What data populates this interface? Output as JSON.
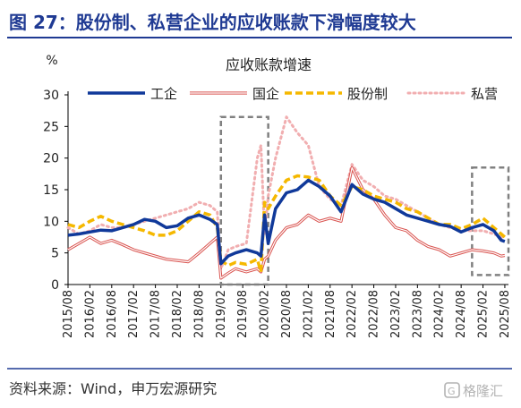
{
  "figure_title": "图 27：股份制、私营企业的应收账款下滑幅度较大",
  "source_text": "资料来源：Wind，申万宏源研究",
  "watermark_text": "格隆汇",
  "colors": {
    "title": "#1f3a93",
    "rule": "#1f3a93",
    "gongqi": "#10399a",
    "guoqi": "#d9534f",
    "gufenzhi": "#f5b800",
    "siying": "#f1aeb0",
    "highlight_box": "#808080"
  },
  "chart_data": {
    "type": "line",
    "title": "应收账款增速",
    "ylabel": "%",
    "xlabel": "",
    "ylim": [
      0,
      30
    ],
    "yticks": [
      0,
      5,
      10,
      15,
      20,
      25,
      30
    ],
    "xlim": [
      "2015-08",
      "2025-09"
    ],
    "xticks": [
      "2015/08",
      "2016/02",
      "2016/08",
      "2017/02",
      "2017/08",
      "2018/02",
      "2018/08",
      "2019/02",
      "2019/08",
      "2020/02",
      "2020/08",
      "2021/02",
      "2021/08",
      "2022/02",
      "2022/08",
      "2023/02",
      "2023/08",
      "2024/02",
      "2024/08",
      "2025/02",
      "2025/08"
    ],
    "legend_position": "top",
    "grid": false,
    "highlight_regions": [
      {
        "x_start": "2019-02",
        "x_end": "2020-03",
        "y_start": 0,
        "y_end": 26.5
      },
      {
        "x_start": "2024-11",
        "x_end": "2025-09",
        "y_start": 1.5,
        "y_end": 18.5
      }
    ],
    "series": [
      {
        "name": "工企",
        "style": "solid-thick",
        "points": [
          [
            "2015-08",
            7.8
          ],
          [
            "2015-11",
            8.0
          ],
          [
            "2016-02",
            8.3
          ],
          [
            "2016-05",
            8.6
          ],
          [
            "2016-08",
            8.5
          ],
          [
            "2016-11",
            9.0
          ],
          [
            "2017-02",
            9.5
          ],
          [
            "2017-05",
            10.3
          ],
          [
            "2017-08",
            10.0
          ],
          [
            "2017-11",
            9.0
          ],
          [
            "2018-02",
            9.3
          ],
          [
            "2018-05",
            10.5
          ],
          [
            "2018-08",
            11.0
          ],
          [
            "2018-11",
            10.3
          ],
          [
            "2019-01",
            9.5
          ],
          [
            "2019-02",
            3.3
          ],
          [
            "2019-04",
            4.5
          ],
          [
            "2019-06",
            5.0
          ],
          [
            "2019-09",
            5.5
          ],
          [
            "2019-12",
            5.0
          ],
          [
            "2020-01",
            4.5
          ],
          [
            "2020-02",
            11.0
          ],
          [
            "2020-03",
            6.5
          ],
          [
            "2020-05",
            12.0
          ],
          [
            "2020-08",
            14.5
          ],
          [
            "2020-11",
            15.0
          ],
          [
            "2021-02",
            16.5
          ],
          [
            "2021-05",
            15.5
          ],
          [
            "2021-08",
            14.0
          ],
          [
            "2021-11",
            11.5
          ],
          [
            "2022-02",
            15.8
          ],
          [
            "2022-05",
            14.3
          ],
          [
            "2022-08",
            13.5
          ],
          [
            "2022-11",
            13.0
          ],
          [
            "2023-02",
            12.0
          ],
          [
            "2023-05",
            11.0
          ],
          [
            "2023-08",
            10.5
          ],
          [
            "2023-11",
            10.0
          ],
          [
            "2024-02",
            9.5
          ],
          [
            "2024-05",
            9.2
          ],
          [
            "2024-08",
            8.3
          ],
          [
            "2024-11",
            9.0
          ],
          [
            "2025-02",
            9.5
          ],
          [
            "2025-05",
            8.5
          ],
          [
            "2025-07",
            7.0
          ],
          [
            "2025-08",
            6.8
          ]
        ]
      },
      {
        "name": "国企",
        "style": "double-line",
        "points": [
          [
            "2015-08",
            5.5
          ],
          [
            "2015-11",
            6.5
          ],
          [
            "2016-02",
            7.5
          ],
          [
            "2016-05",
            6.5
          ],
          [
            "2016-08",
            7.0
          ],
          [
            "2016-11",
            6.3
          ],
          [
            "2017-02",
            5.5
          ],
          [
            "2017-05",
            5.0
          ],
          [
            "2017-08",
            4.5
          ],
          [
            "2017-11",
            4.0
          ],
          [
            "2018-02",
            3.8
          ],
          [
            "2018-05",
            3.6
          ],
          [
            "2018-08",
            5.0
          ],
          [
            "2018-11",
            6.5
          ],
          [
            "2019-01",
            7.5
          ],
          [
            "2019-02",
            1.0
          ],
          [
            "2019-04",
            1.8
          ],
          [
            "2019-06",
            2.5
          ],
          [
            "2019-09",
            2.0
          ],
          [
            "2019-12",
            2.5
          ],
          [
            "2020-01",
            2.0
          ],
          [
            "2020-02",
            4.0
          ],
          [
            "2020-03",
            4.5
          ],
          [
            "2020-05",
            7.0
          ],
          [
            "2020-08",
            9.0
          ],
          [
            "2020-11",
            9.5
          ],
          [
            "2021-02",
            11.0
          ],
          [
            "2021-05",
            10.0
          ],
          [
            "2021-08",
            10.5
          ],
          [
            "2021-11",
            10.0
          ],
          [
            "2022-02",
            18.5
          ],
          [
            "2022-05",
            15.0
          ],
          [
            "2022-08",
            13.5
          ],
          [
            "2022-11",
            11.0
          ],
          [
            "2023-02",
            9.0
          ],
          [
            "2023-05",
            8.5
          ],
          [
            "2023-08",
            7.0
          ],
          [
            "2023-11",
            6.0
          ],
          [
            "2024-02",
            5.5
          ],
          [
            "2024-05",
            4.5
          ],
          [
            "2024-08",
            5.0
          ],
          [
            "2024-11",
            5.5
          ],
          [
            "2025-02",
            5.3
          ],
          [
            "2025-05",
            5.0
          ],
          [
            "2025-07",
            4.5
          ],
          [
            "2025-08",
            4.6
          ]
        ]
      },
      {
        "name": "股份制",
        "style": "dashed-thick",
        "points": [
          [
            "2015-08",
            9.5
          ],
          [
            "2015-11",
            9.0
          ],
          [
            "2016-02",
            10.0
          ],
          [
            "2016-05",
            10.8
          ],
          [
            "2016-08",
            10.0
          ],
          [
            "2016-11",
            9.5
          ],
          [
            "2017-02",
            9.0
          ],
          [
            "2017-05",
            8.5
          ],
          [
            "2017-08",
            7.8
          ],
          [
            "2017-11",
            7.8
          ],
          [
            "2018-02",
            8.5
          ],
          [
            "2018-05",
            10.0
          ],
          [
            "2018-08",
            11.5
          ],
          [
            "2018-11",
            11.0
          ],
          [
            "2019-01",
            9.0
          ],
          [
            "2019-02",
            3.8
          ],
          [
            "2019-04",
            3.0
          ],
          [
            "2019-06",
            3.5
          ],
          [
            "2019-09",
            3.2
          ],
          [
            "2019-12",
            4.0
          ],
          [
            "2020-01",
            2.0
          ],
          [
            "2020-02",
            13.0
          ],
          [
            "2020-03",
            12.0
          ],
          [
            "2020-05",
            14.0
          ],
          [
            "2020-08",
            16.5
          ],
          [
            "2020-11",
            17.2
          ],
          [
            "2021-02",
            17.0
          ],
          [
            "2021-05",
            16.5
          ],
          [
            "2021-08",
            14.0
          ],
          [
            "2021-11",
            12.5
          ],
          [
            "2022-02",
            15.5
          ],
          [
            "2022-05",
            15.0
          ],
          [
            "2022-08",
            14.0
          ],
          [
            "2022-11",
            13.5
          ],
          [
            "2023-02",
            13.0
          ],
          [
            "2023-05",
            12.0
          ],
          [
            "2023-08",
            11.5
          ],
          [
            "2023-11",
            10.5
          ],
          [
            "2024-02",
            9.5
          ],
          [
            "2024-05",
            9.5
          ],
          [
            "2024-08",
            8.8
          ],
          [
            "2024-11",
            9.5
          ],
          [
            "2025-02",
            10.5
          ],
          [
            "2025-05",
            9.0
          ],
          [
            "2025-07",
            8.0
          ],
          [
            "2025-08",
            7.5
          ]
        ]
      },
      {
        "name": "私营",
        "style": "dotted",
        "points": [
          [
            "2015-08",
            9.0
          ],
          [
            "2015-11",
            8.0
          ],
          [
            "2016-02",
            8.5
          ],
          [
            "2016-05",
            9.5
          ],
          [
            "2016-08",
            9.0
          ],
          [
            "2016-11",
            9.0
          ],
          [
            "2017-02",
            9.5
          ],
          [
            "2017-05",
            10.0
          ],
          [
            "2017-08",
            10.5
          ],
          [
            "2017-11",
            11.0
          ],
          [
            "2018-02",
            11.5
          ],
          [
            "2018-05",
            12.0
          ],
          [
            "2018-08",
            13.0
          ],
          [
            "2018-11",
            12.5
          ],
          [
            "2019-01",
            11.5
          ],
          [
            "2019-02",
            2.5
          ],
          [
            "2019-04",
            5.5
          ],
          [
            "2019-06",
            6.0
          ],
          [
            "2019-09",
            6.5
          ],
          [
            "2019-12",
            20.0
          ],
          [
            "2020-01",
            22.0
          ],
          [
            "2020-02",
            8.0
          ],
          [
            "2020-03",
            14.0
          ],
          [
            "2020-05",
            20.0
          ],
          [
            "2020-08",
            26.5
          ],
          [
            "2020-11",
            24.0
          ],
          [
            "2021-02",
            22.0
          ],
          [
            "2021-05",
            15.5
          ],
          [
            "2021-08",
            13.5
          ],
          [
            "2021-11",
            12.5
          ],
          [
            "2022-02",
            19.0
          ],
          [
            "2022-05",
            16.5
          ],
          [
            "2022-08",
            15.5
          ],
          [
            "2022-11",
            14.0
          ],
          [
            "2023-02",
            13.5
          ],
          [
            "2023-05",
            12.5
          ],
          [
            "2023-08",
            11.5
          ],
          [
            "2023-11",
            10.5
          ],
          [
            "2024-02",
            9.5
          ],
          [
            "2024-05",
            9.0
          ],
          [
            "2024-08",
            8.5
          ],
          [
            "2024-11",
            8.5
          ],
          [
            "2025-02",
            8.5
          ],
          [
            "2025-05",
            8.0
          ],
          [
            "2025-07",
            7.5
          ],
          [
            "2025-08",
            7.3
          ]
        ]
      }
    ]
  }
}
